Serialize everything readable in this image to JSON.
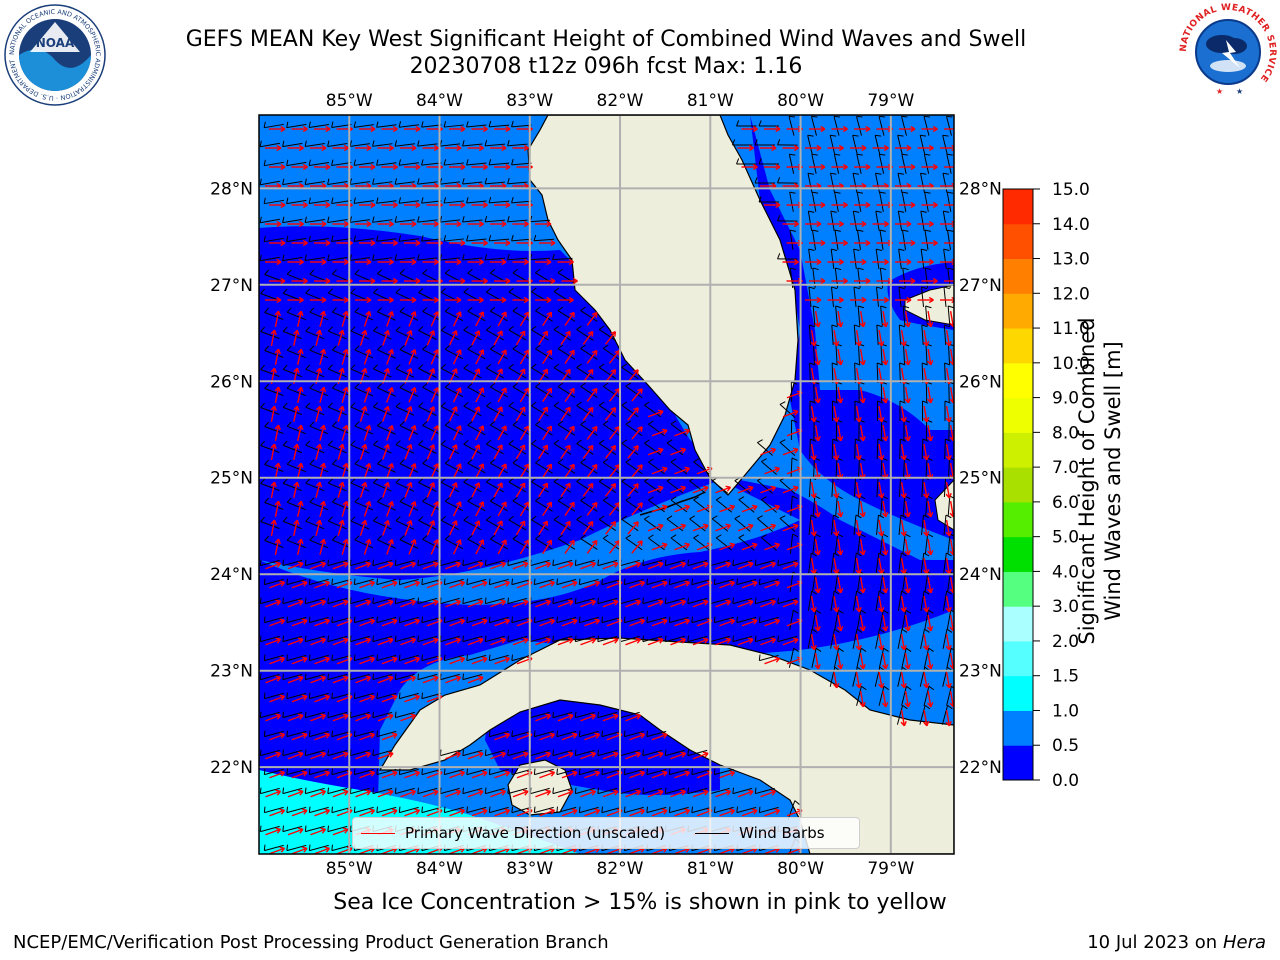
{
  "title": {
    "line1": "GEFS MEAN Key West Significant Height of Combined Wind Waves and Swell",
    "line2": "20230708 t12z 096h fcst   Max: 1.16"
  },
  "axes": {
    "lon_labels": [
      "85°W",
      "84°W",
      "83°W",
      "82°W",
      "81°W",
      "80°W",
      "79°W"
    ],
    "lat_labels": [
      "28°N",
      "27°N",
      "26°N",
      "25°N",
      "24°N",
      "23°N",
      "22°N"
    ],
    "lon_values": [
      -85,
      -84,
      -83,
      -82,
      -81,
      -80,
      -79
    ],
    "lat_values": [
      28,
      27,
      26,
      25,
      24,
      23,
      22
    ],
    "lon_range": [
      -86,
      -78.3
    ],
    "lat_range": [
      21.1,
      28.76
    ],
    "grid": true
  },
  "colorbar": {
    "label_line1": "Significant Height of Combined",
    "label_line2": "Wind Waves and Swell [m]",
    "ticks": [
      "15.0",
      "14.0",
      "13.0",
      "12.0",
      "11.0",
      "10.0",
      "9.0",
      "8.0",
      "7.0",
      "6.0",
      "5.0",
      "4.0",
      "3.0",
      "2.0",
      "1.5",
      "1.0",
      "0.5",
      "0.0"
    ],
    "levels": [
      0,
      0.5,
      1.0,
      1.5,
      2.0,
      3.0,
      4.0,
      5.0,
      6.0,
      7.0,
      8.0,
      9.0,
      10.0,
      11.0,
      12.0,
      13.0,
      14.0,
      15.0
    ],
    "colors": [
      "#0000ff",
      "#0080ff",
      "#00ffff",
      "#55ffff",
      "#aaffff",
      "#55ff80",
      "#00e000",
      "#55ee00",
      "#aae000",
      "#ccf000",
      "#eeff00",
      "#ffff00",
      "#ffd700",
      "#ffaa00",
      "#ff8000",
      "#ff5000",
      "#ff2a00",
      "#ff0000"
    ]
  },
  "legend": {
    "wave_direction": "Primary Wave Direction (unscaled)",
    "wind_barbs": "Wind Barbs",
    "wave_color": "#ff0000",
    "barb_color": "#000000"
  },
  "caption": "Sea Ice Concentration > 15% is shown in pink to yellow",
  "footer": {
    "left": "NCEP/EMC/Verification Post Processing Product Generation Branch",
    "right_date": "10 Jul 2023 on",
    "right_host": "Hera"
  },
  "logos": {
    "left": "NOAA",
    "right": "NATIONAL WEATHER SERVICE"
  },
  "map_colors": {
    "land": "#eeeedd",
    "height_0_05": "#0000ff",
    "height_05_10": "#0080ff",
    "height_10_15": "#00ffff",
    "grid": "#b0b0b0"
  }
}
